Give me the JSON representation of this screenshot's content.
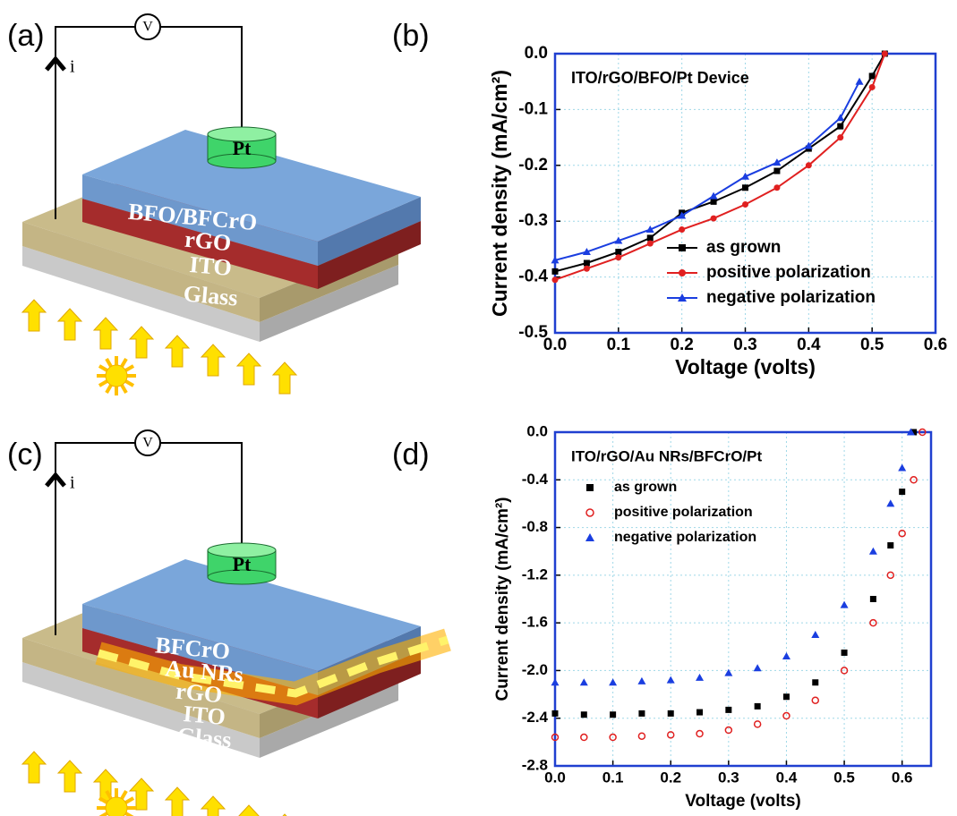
{
  "panels": [
    "(a)",
    "(b)",
    "(c)",
    "(d)"
  ],
  "diagrams": [
    {
      "voltmeter": "V",
      "current": "i",
      "electrode": "Pt",
      "layers": [
        "BFO/BFCrO",
        "rGO",
        "ITO",
        "Glass"
      ]
    },
    {
      "voltmeter": "V",
      "current": "i",
      "electrode": "Pt",
      "layers": [
        "BFCrO",
        "Au NRs",
        "rGO",
        "ITO",
        "Glass"
      ]
    }
  ],
  "chart_data": [
    {
      "type": "line",
      "title": "ITO/rGO/BFO/Pt Device",
      "x_label": "Voltage (volts)",
      "y_label": "Current density (mA/cm²)",
      "xlim": [
        0,
        0.6
      ],
      "ylim": [
        -0.5,
        0
      ],
      "xticks": [
        {
          "value": 0,
          "label": "0.0"
        },
        0.1,
        0.2,
        0.3,
        0.4,
        0.5,
        0.6
      ],
      "yticks": [
        -0.5,
        -0.4,
        -0.3,
        -0.2,
        -0.1,
        {
          "value": 0,
          "label": "0.0"
        }
      ],
      "grid": true,
      "legend": "lower right",
      "series": [
        {
          "name": "as grown",
          "color": "#000000",
          "marker": "square",
          "x": [
            0,
            0.05,
            0.1,
            0.15,
            0.2,
            0.25,
            0.3,
            0.35,
            0.4,
            0.45,
            0.5,
            0.52
          ],
          "values": [
            -0.39,
            -0.375,
            -0.355,
            -0.33,
            -0.285,
            -0.265,
            -0.24,
            -0.21,
            -0.17,
            -0.13,
            -0.04,
            0
          ]
        },
        {
          "name": "positive polarization",
          "color": "#e02020",
          "marker": "circle",
          "x": [
            0,
            0.05,
            0.1,
            0.15,
            0.2,
            0.25,
            0.3,
            0.35,
            0.4,
            0.45,
            0.5,
            0.52
          ],
          "values": [
            -0.405,
            -0.385,
            -0.365,
            -0.34,
            -0.315,
            -0.295,
            -0.27,
            -0.24,
            -0.2,
            -0.15,
            -0.06,
            0
          ]
        },
        {
          "name": "negative polarization",
          "color": "#1a3ee0",
          "marker": "triangle",
          "x": [
            0,
            0.05,
            0.1,
            0.15,
            0.2,
            0.25,
            0.3,
            0.35,
            0.4,
            0.45,
            0.48
          ],
          "values": [
            -0.37,
            -0.355,
            -0.335,
            -0.315,
            -0.29,
            -0.255,
            -0.22,
            -0.195,
            -0.165,
            -0.115,
            -0.05
          ]
        }
      ]
    },
    {
      "type": "scatter",
      "title": "ITO/rGO/Au NRs/BFCrO/Pt",
      "x_label": "Voltage (volts)",
      "y_label": "Current density (mA/cm²)",
      "xlim": [
        0,
        0.65
      ],
      "ylim": [
        -2.8,
        0
      ],
      "xticks": [
        {
          "value": 0,
          "label": "0.0"
        },
        0.1,
        0.2,
        0.3,
        0.4,
        0.5,
        0.6
      ],
      "yticks": [
        -2.8,
        -2.4,
        {
          "value": -2,
          "label": "-2.0"
        },
        -1.6,
        -1.2,
        -0.8,
        -0.4,
        {
          "value": 0,
          "label": "0.0"
        }
      ],
      "grid": true,
      "legend": "upper left",
      "series": [
        {
          "name": "as grown",
          "color": "#000000",
          "marker": "square",
          "x": [
            0,
            0.05,
            0.1,
            0.15,
            0.2,
            0.25,
            0.3,
            0.35,
            0.4,
            0.45,
            0.5,
            0.55,
            0.58,
            0.6,
            0.62
          ],
          "values": [
            -2.36,
            -2.37,
            -2.37,
            -2.36,
            -2.36,
            -2.35,
            -2.33,
            -2.3,
            -2.22,
            -2.1,
            -1.85,
            -1.4,
            -0.95,
            -0.5,
            0
          ]
        },
        {
          "name": "positive polarization",
          "color": "#e02020",
          "marker": "circle",
          "x": [
            0,
            0.05,
            0.1,
            0.15,
            0.2,
            0.25,
            0.3,
            0.35,
            0.4,
            0.45,
            0.5,
            0.55,
            0.58,
            0.6,
            0.62,
            0.635
          ],
          "values": [
            -2.56,
            -2.56,
            -2.56,
            -2.55,
            -2.54,
            -2.53,
            -2.5,
            -2.45,
            -2.38,
            -2.25,
            -2.0,
            -1.6,
            -1.2,
            -0.85,
            -0.4,
            0
          ]
        },
        {
          "name": "negative polarization",
          "color": "#1a3ee0",
          "marker": "triangle",
          "x": [
            0,
            0.05,
            0.1,
            0.15,
            0.2,
            0.25,
            0.3,
            0.35,
            0.4,
            0.45,
            0.5,
            0.55,
            0.58,
            0.6,
            0.615
          ],
          "values": [
            -2.1,
            -2.1,
            -2.1,
            -2.09,
            -2.08,
            -2.06,
            -2.02,
            -1.98,
            -1.88,
            -1.7,
            -1.45,
            -1.0,
            -0.6,
            -0.3,
            0
          ]
        }
      ]
    }
  ]
}
